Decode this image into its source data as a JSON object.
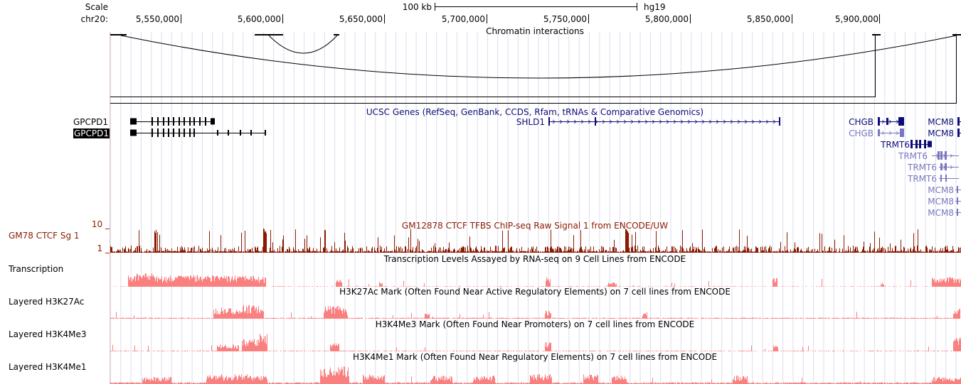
{
  "ruler": {
    "scale_label": "Scale",
    "chrom_label": "chr20:",
    "scale_bar": "100 kb",
    "assembly": "hg19",
    "ticks": [
      "5,550,000",
      "5,600,000",
      "5,650,000",
      "5,700,000",
      "5,750,000",
      "5,800,000",
      "5,850,000",
      "5,900,000"
    ]
  },
  "tracks": {
    "chromatin_title": "Chromatin interactions",
    "genes_title": "UCSC Genes (RefSeq, GenBank, CCDS, Rfam, tRNAs & Comparative Genomics)",
    "ctcf_title": "GM12878 CTCF TFBS ChIP-seq Raw Signal 1 from ENCODE/UW",
    "ctcf_label": "GM78 CTCF Sg 1",
    "ctcf_max": "10 _",
    "ctcf_min": "1 _",
    "transcription_label": "Transcription",
    "transcription_title": "Transcription Levels Assayed by RNA-seq on 9 Cell Lines from ENCODE",
    "h3k27ac_label": "Layered H3K27Ac",
    "h3k27ac_title": "H3K27Ac Mark (Often Found Near Active Regulatory Elements) on 7 cell lines from ENCODE",
    "h3k4me3_label": "Layered H3K4Me3",
    "h3k4me3_title": "H3K4Me3 Mark (Often Found Near Promoters) on 7 cell lines from ENCODE",
    "h3k4me1_label": "Layered H3K4Me1",
    "h3k4me1_title": "H3K4Me1 Mark (Often Found Near Regulatory Elements) on 7 cell lines from ENCODE"
  },
  "genes": {
    "gpcpd1_a": "GPCPD1",
    "gpcpd1_b": "GPCPD1",
    "shld1": "SHLD1",
    "chgb_a": "CHGB",
    "chgb_b": "CHGB",
    "mcm8_a": "MCM8",
    "mcm8_b": "MCM8",
    "trmt6_a": "TRMT6",
    "trmt6_b": "TRMT6",
    "trmt6_c": "TRMT6",
    "trmt6_d": "TRMT6",
    "mcm8_c": "MCM8",
    "mcm8_d": "MCM8",
    "mcm8_e": "MCM8"
  },
  "colors": {
    "gene_dark": "#0c0c78",
    "gene_light": "#7777c0",
    "ctcf": "#8b1a00",
    "signal": "#fa8080",
    "grid": "#ddddf0",
    "interaction": "#000000"
  }
}
